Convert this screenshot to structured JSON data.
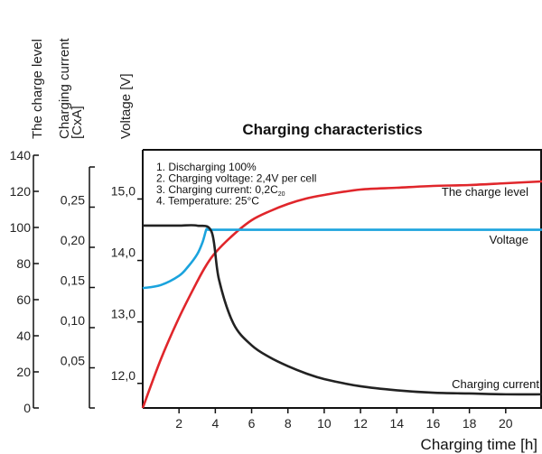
{
  "chart_data": {
    "type": "line",
    "title": "Charging characteristics",
    "xlabel": "Charging time [h]",
    "xlim": [
      0,
      22
    ],
    "x_ticks": [
      2,
      4,
      6,
      8,
      10,
      12,
      14,
      16,
      18,
      20
    ],
    "y_axes": [
      {
        "label": "The charge level",
        "lim": [
          0,
          140
        ],
        "ticks": [
          0,
          20,
          40,
          60,
          80,
          100,
          120,
          140
        ],
        "tick_labels": [
          "0",
          "20",
          "40",
          "60",
          "80",
          "100",
          "120",
          "140"
        ]
      },
      {
        "label": "Charging current\n[CxA]",
        "lim": [
          0,
          0.3
        ],
        "ticks": [
          0.05,
          0.1,
          0.15,
          0.2,
          0.25
        ],
        "tick_labels": [
          "0,05",
          "0,10",
          "0,15",
          "0,20",
          "0,25"
        ]
      },
      {
        "label": "Voltage [V]",
        "lim": [
          11.6,
          15.8
        ],
        "ticks": [
          12.0,
          13.0,
          14.0,
          15.0
        ],
        "tick_labels": [
          "12,0",
          "13,0",
          "14,0",
          "15,0"
        ]
      }
    ],
    "annotations": [
      "1. Discharging 100%",
      "2. Charging voltage: 2,4V per cell",
      "3. Charging current: 0,2C",
      "4. Temperature: 25°C"
    ],
    "annotation_subscript": "20",
    "series": [
      {
        "name": "The charge level",
        "axis": 0,
        "color": "#e0262b",
        "x": [
          0,
          1,
          2,
          3,
          3.5,
          4,
          5,
          6,
          7,
          8,
          9,
          10,
          12,
          14,
          16,
          18,
          20,
          22
        ],
        "y": [
          0,
          27,
          50,
          70,
          79,
          86,
          96,
          104,
          109,
          113,
          116,
          118,
          121,
          122,
          123,
          123.5,
          124.5,
          125.5
        ]
      },
      {
        "name": "Voltage",
        "axis": 2,
        "color": "#1aa3dd",
        "x": [
          0,
          1,
          2,
          2.5,
          3,
          3.3,
          3.5,
          3.6,
          4,
          6,
          10,
          14,
          18,
          22
        ],
        "y": [
          13.55,
          13.6,
          13.75,
          13.9,
          14.1,
          14.3,
          14.5,
          14.5,
          14.5,
          14.5,
          14.5,
          14.5,
          14.5,
          14.5
        ]
      },
      {
        "name": "Charging current",
        "axis": 1,
        "color": "#222222",
        "x": [
          0,
          1,
          2,
          3,
          3.8,
          4.2,
          5,
          6,
          7,
          8,
          9,
          10,
          12,
          14,
          16,
          18,
          20,
          22
        ],
        "y": [
          0.227,
          0.227,
          0.227,
          0.227,
          0.219,
          0.16,
          0.105,
          0.078,
          0.063,
          0.052,
          0.043,
          0.036,
          0.027,
          0.022,
          0.019,
          0.018,
          0.017,
          0.017
        ]
      }
    ]
  }
}
